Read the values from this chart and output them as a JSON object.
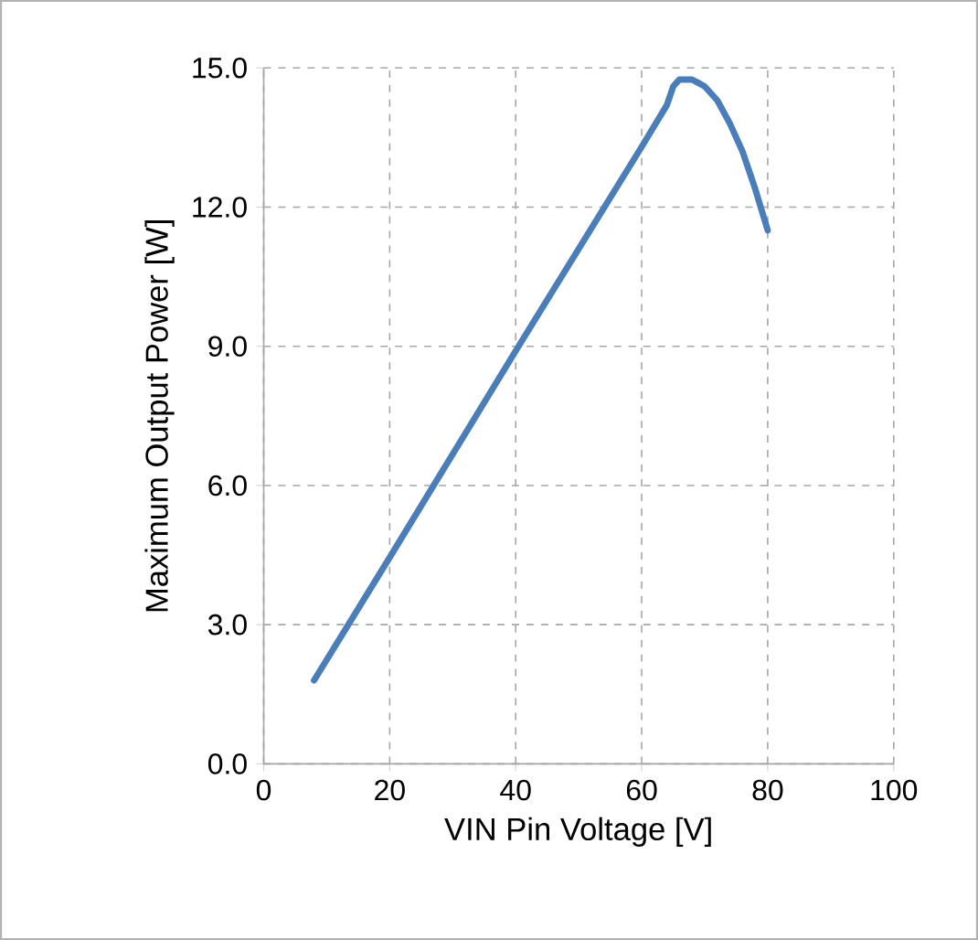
{
  "chart_data": {
    "type": "line",
    "xlabel": "VIN Pin Voltage [V]",
    "ylabel": "Maximum Output Power [W]",
    "x": [
      8,
      20,
      40,
      60,
      64,
      65,
      66,
      68,
      70,
      72,
      74,
      76,
      78,
      80
    ],
    "series": [
      {
        "color": "#4a7ebb",
        "values": [
          1.8,
          4.45,
          8.9,
          13.3,
          14.2,
          14.6,
          14.75,
          14.75,
          14.6,
          14.3,
          13.8,
          13.2,
          12.4,
          11.5
        ]
      }
    ],
    "xlim": [
      0,
      100
    ],
    "ylim": [
      0,
      15
    ],
    "xticks": [
      0,
      20,
      40,
      60,
      80,
      100
    ],
    "yticks": [
      {
        "value": 0,
        "label": "0.0"
      },
      {
        "value": 3,
        "label": "3.0"
      },
      {
        "value": 6,
        "label": "6.0"
      },
      {
        "value": 9,
        "label": "9.0"
      },
      {
        "value": 12,
        "label": "12.0"
      },
      {
        "value": 15,
        "label": "15.0"
      }
    ],
    "grid": true,
    "marker": "none",
    "line_style": "solid"
  }
}
